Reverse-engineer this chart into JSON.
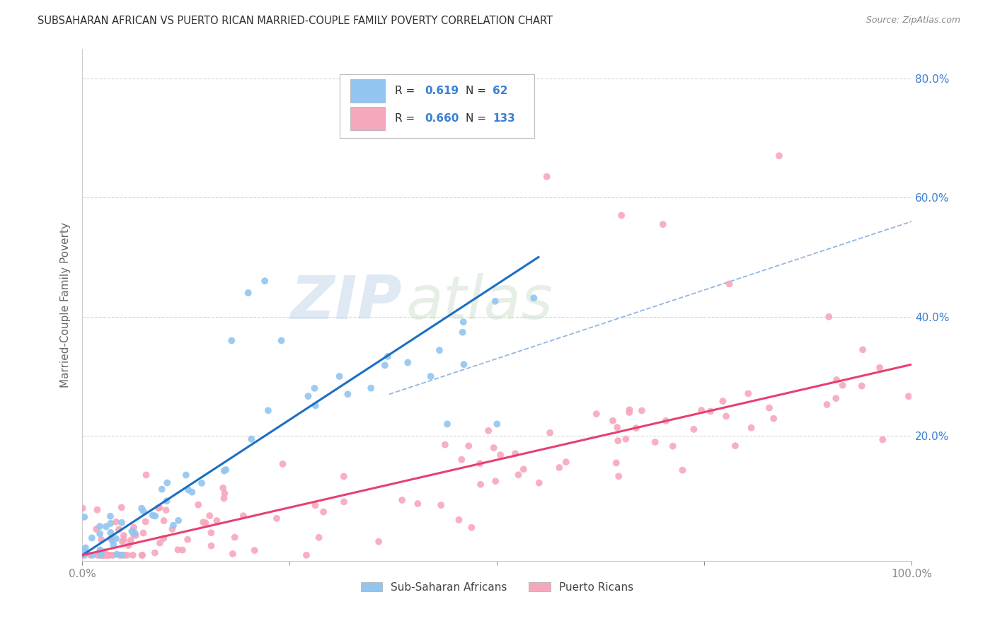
{
  "title": "SUBSAHARAN AFRICAN VS PUERTO RICAN MARRIED-COUPLE FAMILY POVERTY CORRELATION CHART",
  "source": "Source: ZipAtlas.com",
  "ylabel": "Married-Couple Family Poverty",
  "xlim": [
    0,
    1.0
  ],
  "ylim": [
    -0.01,
    0.85
  ],
  "xtick_positions": [
    0.0,
    0.25,
    0.5,
    0.75,
    1.0
  ],
  "xtick_labels": [
    "0.0%",
    "",
    "",
    "",
    "100.0%"
  ],
  "ytick_vals": [
    0.2,
    0.4,
    0.6,
    0.8
  ],
  "ytick_labels": [
    "20.0%",
    "40.0%",
    "60.0%",
    "80.0%"
  ],
  "legend1_R": "0.619",
  "legend1_N": "62",
  "legend2_R": "0.660",
  "legend2_N": "133",
  "blue_scatter_color": "#92c5f0",
  "pink_scatter_color": "#f5a8bc",
  "blue_line_color": "#1a6fc4",
  "pink_line_color": "#e84070",
  "dashed_line_color": "#90b8e0",
  "watermark_zip_color": "#c8d8ea",
  "watermark_atlas_color": "#d8e8d0",
  "background_color": "#ffffff",
  "grid_color": "#d8d8d8",
  "title_color": "#303030",
  "axis_label_color": "#666666",
  "right_tick_color": "#3a7fd5",
  "legend_text_color": "#303030",
  "legend_number_color": "#3a7fd5",
  "blue_line_x": [
    0.0,
    0.55
  ],
  "blue_line_y": [
    0.0,
    0.5
  ],
  "pink_line_x": [
    0.0,
    1.0
  ],
  "pink_line_y": [
    0.0,
    0.32
  ],
  "dashed_line_x": [
    0.37,
    1.0
  ],
  "dashed_line_y": [
    0.27,
    0.56
  ]
}
